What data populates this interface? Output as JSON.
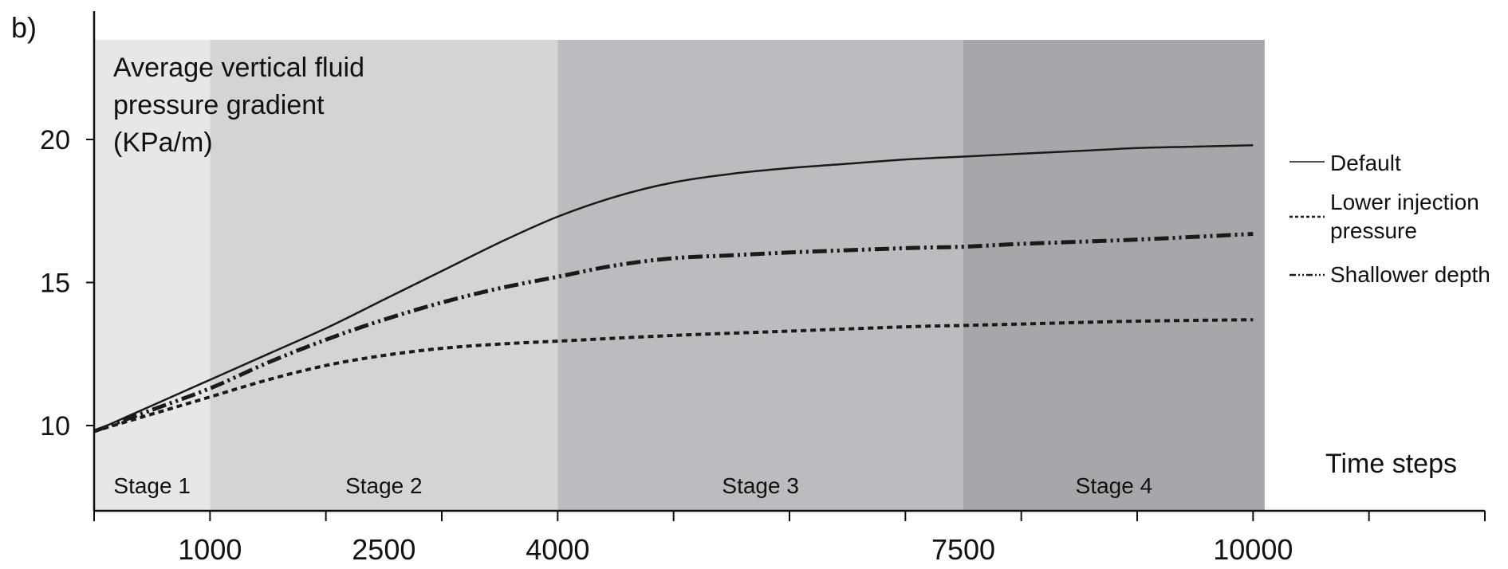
{
  "chart_data": {
    "type": "line",
    "panel_label": "b)",
    "title_lines": [
      "Average vertical fluid",
      "pressure gradient",
      "(KPa/m)"
    ],
    "xlabel": "Time steps",
    "xlim": [
      0,
      12000
    ],
    "ylim": [
      7,
      24
    ],
    "x_ticks": [
      0,
      1000,
      2000,
      3000,
      4000,
      5000,
      6000,
      7000,
      8000,
      9000,
      10000,
      11000,
      12000
    ],
    "x_tick_labels": [
      {
        "x": 1000,
        "label": "1000"
      },
      {
        "x": 2500,
        "label": "2500"
      },
      {
        "x": 4000,
        "label": "4000"
      },
      {
        "x": 7500,
        "label": "7500"
      },
      {
        "x": 10000,
        "label": "10000"
      }
    ],
    "y_ticks": [
      {
        "y": 10,
        "label": "10"
      },
      {
        "y": 15,
        "label": "15"
      },
      {
        "y": 20,
        "label": "20"
      }
    ],
    "stages": [
      {
        "label": "Stage 1",
        "x0": 0,
        "x1": 1000,
        "color": "#e7e7e9"
      },
      {
        "label": "Stage 2",
        "x0": 1000,
        "x1": 4000,
        "color": "#d3d4d6"
      },
      {
        "label": "Stage 3",
        "x0": 4000,
        "x1": 7500,
        "color": "#bbbcbf"
      },
      {
        "label": "Stage 4",
        "x0": 7500,
        "x1": 10100,
        "color": "#a6a7aa"
      }
    ],
    "series": [
      {
        "name": "Default",
        "style": "solid",
        "x": [
          0,
          500,
          1000,
          1500,
          2000,
          2500,
          3000,
          3500,
          4000,
          4500,
          5000,
          5500,
          6000,
          6500,
          7000,
          7500,
          8000,
          8500,
          9000,
          9500,
          10000
        ],
        "y": [
          9.8,
          10.7,
          11.6,
          12.5,
          13.4,
          14.4,
          15.4,
          16.4,
          17.3,
          18.0,
          18.5,
          18.8,
          19.0,
          19.15,
          19.3,
          19.4,
          19.5,
          19.6,
          19.7,
          19.75,
          19.8
        ]
      },
      {
        "name": "Lower injection pressure",
        "style": "dashed",
        "x": [
          0,
          500,
          1000,
          1500,
          2000,
          2500,
          3000,
          3500,
          4000,
          5000,
          6000,
          7000,
          7500,
          8000,
          9000,
          10000
        ],
        "y": [
          9.8,
          10.4,
          11.0,
          11.6,
          12.1,
          12.45,
          12.7,
          12.85,
          12.95,
          13.15,
          13.3,
          13.45,
          13.5,
          13.55,
          13.65,
          13.7
        ]
      },
      {
        "name": "Shallower depth",
        "style": "dash-dot-dot",
        "x": [
          0,
          500,
          1000,
          1500,
          2000,
          2500,
          3000,
          3500,
          4000,
          4500,
          5000,
          5500,
          6000,
          7000,
          7500,
          8000,
          9000,
          10000
        ],
        "y": [
          9.8,
          10.55,
          11.3,
          12.2,
          13.0,
          13.7,
          14.3,
          14.8,
          15.2,
          15.6,
          15.85,
          15.95,
          16.05,
          16.2,
          16.25,
          16.35,
          16.5,
          16.7
        ]
      }
    ],
    "legend_position": "right"
  }
}
